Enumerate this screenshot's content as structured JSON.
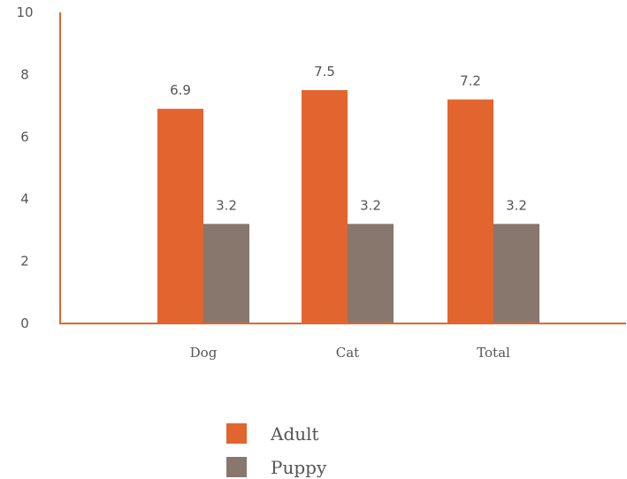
{
  "chart_data": {
    "type": "bar",
    "categories": [
      "Dog",
      "Cat",
      "Total"
    ],
    "series": [
      {
        "name": "Adult",
        "values": [
          6.9,
          7.5,
          7.2
        ],
        "color": "#E2652F"
      },
      {
        "name": "Puppy",
        "values": [
          3.2,
          3.2,
          3.2
        ],
        "color": "#87776D"
      }
    ],
    "ylim": [
      0,
      10
    ],
    "yticks": [
      0,
      2,
      4,
      6,
      8,
      10
    ],
    "ytick_labels": [
      "0",
      "2",
      "4",
      "6",
      "8",
      "10"
    ],
    "data_labels": true,
    "grid": false,
    "legend_position": "bottom",
    "axis_color": "#E2652F",
    "title": "",
    "xlabel": "",
    "ylabel": ""
  }
}
